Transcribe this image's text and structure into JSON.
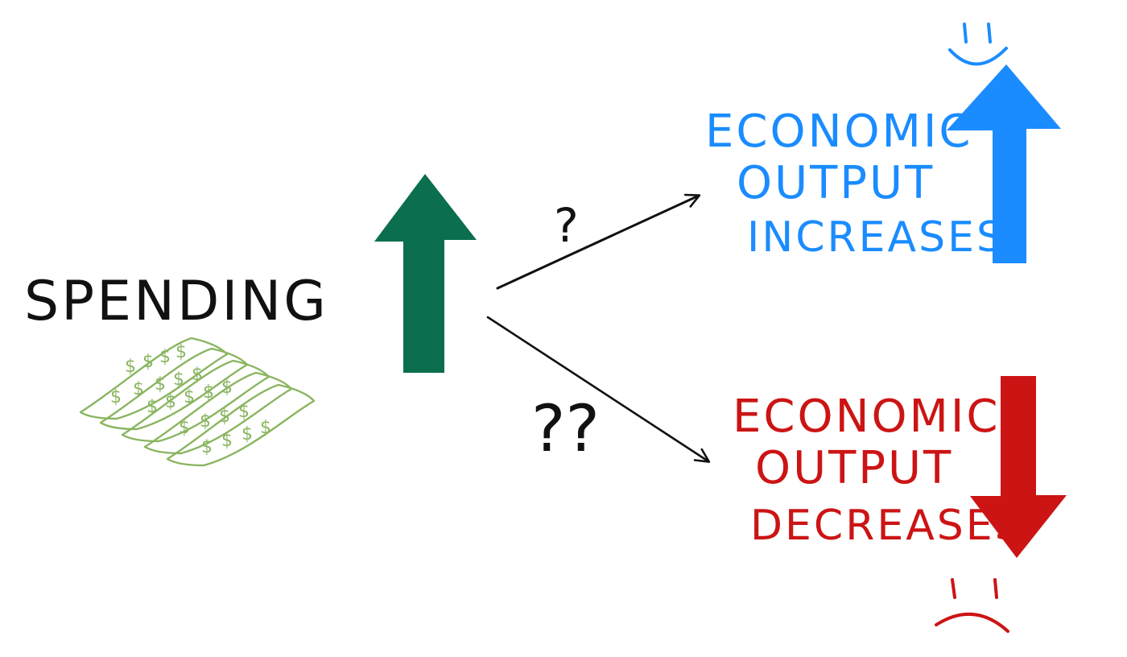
{
  "title": "",
  "cause": {
    "label": "SPENDING",
    "bill_symbol": "$"
  },
  "paths": {
    "upper_mark": "?",
    "lower_mark": "??"
  },
  "outcome_up": {
    "lines": [
      "ECONOMIC",
      "OUTPUT",
      "INCREASES"
    ],
    "face": "happy",
    "icon": "arrow-up"
  },
  "outcome_down": {
    "lines": [
      "ECONOMIC",
      "OUTPUT",
      "DECREASES"
    ],
    "face": "sad",
    "icon": "arrow-down"
  },
  "colors": {
    "ink": "#111111",
    "spending_arrow": "#0b6e4f",
    "bill_green": "#8ab560",
    "increase": "#1a8cff",
    "decrease": "#cc1414"
  }
}
